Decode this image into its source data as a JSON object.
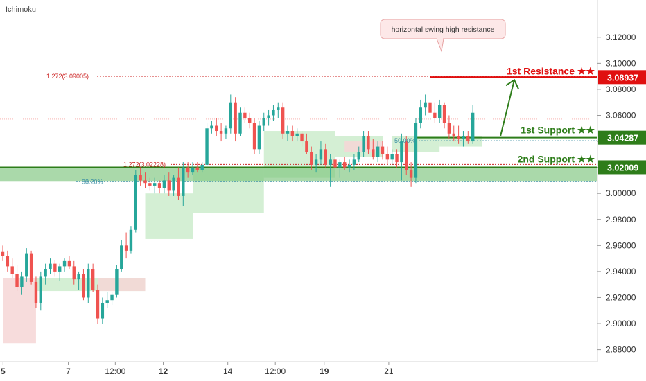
{
  "indicator": "Ichimoku",
  "colors": {
    "up": "#26a69a",
    "down": "#ef5350",
    "support": "#2e7d1a",
    "resistance": "#e01010",
    "zone": "#7cc47c",
    "cloud_bull": "#cdeccd",
    "cloud_bear": "#f6d6d6",
    "callout_bg": "#fde8e8",
    "callout_border": "#e7a3a3",
    "fib": "#cc2222",
    "fib_teal": "#3a8fa3"
  },
  "chart_data": {
    "type": "candlestick",
    "ylim": [
      2.875,
      3.13
    ],
    "y_ticks": [
      "3.12000",
      "3.10000",
      "3.08000",
      "3.06000",
      "3.04000",
      "3.02000",
      "3.00000",
      "2.98000",
      "2.96000",
      "2.94000",
      "2.92000",
      "2.90000",
      "2.88000"
    ],
    "x_ticks": [
      {
        "label": "5",
        "bold": true,
        "x": 0.05
      },
      {
        "label": "7",
        "bold": false,
        "x": 13.8
      },
      {
        "label": "12:00",
        "bold": false,
        "x": 23.7
      },
      {
        "label": "12",
        "bold": true,
        "x": 33.8
      },
      {
        "label": "14",
        "bold": false,
        "x": 47.4
      },
      {
        "label": "12:00",
        "bold": false,
        "x": 57.4
      },
      {
        "label": "19",
        "bold": true,
        "x": 67.7
      },
      {
        "label": "21",
        "bold": false,
        "x": 81.3
      }
    ],
    "candles": [
      [
        2.955,
        2.96,
        2.948,
        2.952
      ],
      [
        2.952,
        2.956,
        2.94,
        2.944
      ],
      [
        2.944,
        2.95,
        2.935,
        2.938
      ],
      [
        2.938,
        2.945,
        2.925,
        2.928
      ],
      [
        2.928,
        2.94,
        2.922,
        2.936
      ],
      [
        2.936,
        2.958,
        2.932,
        2.954
      ],
      [
        2.954,
        2.956,
        2.93,
        2.932
      ],
      [
        2.932,
        2.936,
        2.912,
        2.916
      ],
      [
        2.916,
        2.94,
        2.91,
        2.936
      ],
      [
        2.936,
        2.946,
        2.93,
        2.942
      ],
      [
        2.942,
        2.95,
        2.938,
        2.946
      ],
      [
        2.946,
        2.949,
        2.936,
        2.94
      ],
      [
        2.94,
        2.946,
        2.933,
        2.944
      ],
      [
        2.944,
        2.95,
        2.94,
        2.948
      ],
      [
        2.948,
        2.952,
        2.942,
        2.944
      ],
      [
        2.944,
        2.948,
        2.93,
        2.934
      ],
      [
        2.934,
        2.94,
        2.926,
        2.938
      ],
      [
        2.938,
        2.942,
        2.918,
        2.92
      ],
      [
        2.92,
        2.946,
        2.916,
        2.942
      ],
      [
        2.942,
        2.946,
        2.924,
        2.926
      ],
      [
        2.926,
        2.93,
        2.9,
        2.904
      ],
      [
        2.904,
        2.92,
        2.9,
        2.916
      ],
      [
        2.916,
        2.924,
        2.912,
        2.918
      ],
      [
        2.918,
        2.924,
        2.914,
        2.922
      ],
      [
        2.922,
        2.945,
        2.92,
        2.942
      ],
      [
        2.942,
        2.964,
        2.94,
        2.96
      ],
      [
        2.96,
        2.97,
        2.95,
        2.956
      ],
      [
        2.956,
        2.975,
        2.954,
        2.972
      ],
      [
        2.972,
        3.018,
        2.97,
        3.014
      ],
      [
        3.014,
        3.02,
        3.006,
        3.01
      ],
      [
        3.01,
        3.016,
        3.004,
        3.008
      ],
      [
        3.008,
        3.012,
        3.002,
        3.006
      ],
      [
        3.006,
        3.012,
        3.0,
        3.008
      ],
      [
        3.008,
        3.01,
        3.0,
        3.004
      ],
      [
        3.004,
        3.014,
        3.0,
        3.01
      ],
      [
        3.01,
        3.016,
        2.998,
        3.002
      ],
      [
        3.002,
        3.014,
        2.998,
        3.012
      ],
      [
        3.012,
        3.02,
        2.995,
        2.998
      ],
      [
        2.998,
        3.024,
        2.99,
        3.02
      ],
      [
        3.02,
        3.024,
        3.012,
        3.016
      ],
      [
        3.016,
        3.024,
        3.014,
        3.02
      ],
      [
        3.02,
        3.024,
        3.016,
        3.018
      ],
      [
        3.018,
        3.024,
        3.016,
        3.022
      ],
      [
        3.022,
        3.054,
        3.02,
        3.05
      ],
      [
        3.05,
        3.056,
        3.046,
        3.052
      ],
      [
        3.052,
        3.058,
        3.044,
        3.048
      ],
      [
        3.048,
        3.054,
        3.04,
        3.046
      ],
      [
        3.046,
        3.052,
        3.042,
        3.05
      ],
      [
        3.05,
        3.076,
        3.046,
        3.07
      ],
      [
        3.07,
        3.074,
        3.04,
        3.046
      ],
      [
        3.046,
        3.066,
        3.044,
        3.062
      ],
      [
        3.062,
        3.066,
        3.054,
        3.058
      ],
      [
        3.058,
        3.062,
        3.05,
        3.054
      ],
      [
        3.054,
        3.058,
        3.03,
        3.034
      ],
      [
        3.034,
        3.056,
        3.03,
        3.052
      ],
      [
        3.052,
        3.062,
        3.048,
        3.058
      ],
      [
        3.058,
        3.064,
        3.052,
        3.06
      ],
      [
        3.06,
        3.068,
        3.056,
        3.064
      ],
      [
        3.064,
        3.07,
        3.058,
        3.066
      ],
      [
        3.066,
        3.07,
        3.042,
        3.046
      ],
      [
        3.046,
        3.052,
        3.04,
        3.048
      ],
      [
        3.048,
        3.052,
        3.04,
        3.044
      ],
      [
        3.044,
        3.05,
        3.04,
        3.046
      ],
      [
        3.046,
        3.048,
        3.036,
        3.04
      ],
      [
        3.04,
        3.046,
        3.03,
        3.032
      ],
      [
        3.032,
        3.036,
        3.018,
        3.022
      ],
      [
        3.022,
        3.03,
        3.016,
        3.026
      ],
      [
        3.026,
        3.04,
        3.022,
        3.034
      ],
      [
        3.034,
        3.038,
        3.02,
        3.022
      ],
      [
        3.022,
        3.03,
        3.005,
        3.026
      ],
      [
        3.026,
        3.032,
        3.018,
        3.02
      ],
      [
        3.02,
        3.026,
        3.012,
        3.024
      ],
      [
        3.024,
        3.028,
        3.018,
        3.02
      ],
      [
        3.02,
        3.026,
        3.016,
        3.022
      ],
      [
        3.022,
        3.03,
        3.018,
        3.026
      ],
      [
        3.026,
        3.036,
        3.024,
        3.032
      ],
      [
        3.032,
        3.048,
        3.028,
        3.044
      ],
      [
        3.044,
        3.048,
        3.03,
        3.034
      ],
      [
        3.034,
        3.042,
        3.026,
        3.028
      ],
      [
        3.028,
        3.04,
        3.024,
        3.036
      ],
      [
        3.036,
        3.04,
        3.026,
        3.03
      ],
      [
        3.03,
        3.036,
        3.022,
        3.026
      ],
      [
        3.026,
        3.034,
        3.022,
        3.03
      ],
      [
        3.03,
        3.034,
        3.02,
        3.024
      ],
      [
        3.024,
        3.046,
        3.01,
        3.04
      ],
      [
        3.04,
        3.044,
        3.014,
        3.018
      ],
      [
        3.018,
        3.024,
        3.005,
        3.012
      ],
      [
        3.012,
        3.058,
        3.008,
        3.054
      ],
      [
        3.054,
        3.072,
        3.05,
        3.066
      ],
      [
        3.066,
        3.076,
        3.06,
        3.07
      ],
      [
        3.07,
        3.074,
        3.058,
        3.062
      ],
      [
        3.062,
        3.07,
        3.054,
        3.058
      ],
      [
        3.058,
        3.072,
        3.054,
        3.068
      ],
      [
        3.068,
        3.07,
        3.05,
        3.054
      ],
      [
        3.054,
        3.06,
        3.042,
        3.046
      ],
      [
        3.046,
        3.052,
        3.04,
        3.044
      ],
      [
        3.044,
        3.052,
        3.038,
        3.042
      ],
      [
        3.042,
        3.048,
        3.036,
        3.044
      ],
      [
        3.044,
        3.048,
        3.038,
        3.04
      ],
      [
        3.04,
        3.068,
        3.038,
        3.062
      ]
    ],
    "cloud": {
      "bull": [
        [
          7,
          30,
          2.925,
          2.935
        ],
        [
          30,
          40,
          2.965,
          3.0
        ],
        [
          40,
          55,
          2.985,
          3.02
        ],
        [
          55,
          70,
          3.012,
          3.048
        ],
        [
          70,
          80,
          3.028,
          3.044
        ],
        [
          82,
          92,
          3.032,
          3.044
        ],
        [
          92,
          101,
          3.036,
          3.044
        ]
      ],
      "bear": [
        [
          0,
          7,
          2.885,
          2.935
        ],
        [
          20,
          30,
          2.925,
          2.935
        ],
        [
          72,
          80,
          3.032,
          3.04
        ]
      ]
    }
  },
  "levels": {
    "resistance": {
      "label": "1st Resistance ★★",
      "value": 3.08937,
      "value_label": "3.08937"
    },
    "support1": {
      "label": "1st Support ★★",
      "value": 3.04287,
      "value_label": "3.04287"
    },
    "support2": {
      "label": "2nd Support ★★",
      "value": 3.02009,
      "value_label": "3.02009",
      "zone_low": 3.009
    },
    "current_price": 3.0571
  },
  "fib": {
    "f1272_top": {
      "label": "1.272(3.09005)",
      "value": 3.09005
    },
    "f1272_mid": {
      "label": "1.272(3.02228)",
      "value": 3.02228
    },
    "f382": {
      "label": "38.20%",
      "value": 3.009
    },
    "f50": {
      "label": "50.00%",
      "value": 3.0405
    }
  },
  "callout": {
    "text": "horizontal swing high resistance"
  }
}
